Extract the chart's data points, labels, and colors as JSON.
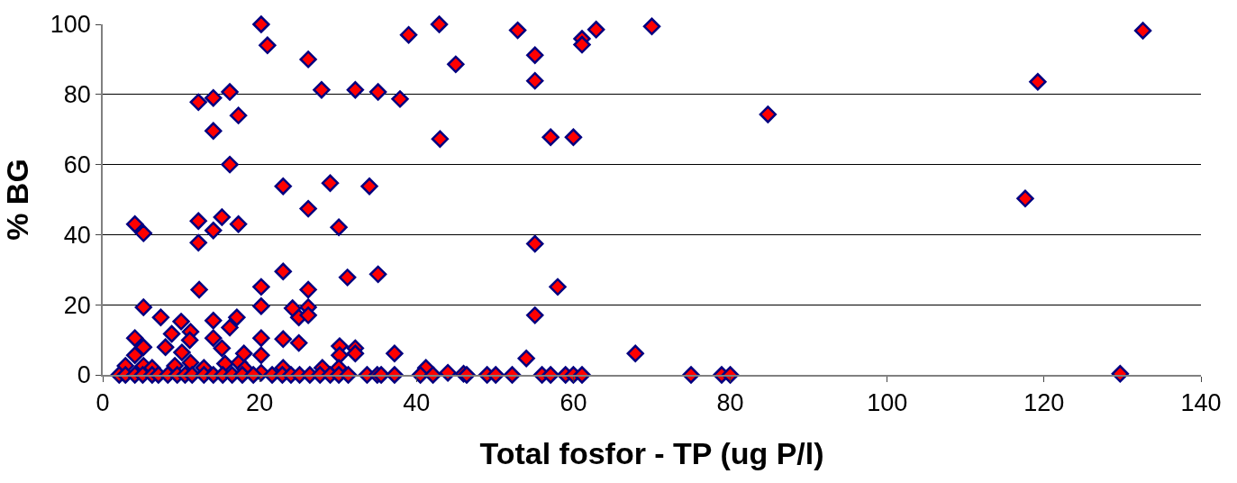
{
  "chart_data": {
    "type": "scatter",
    "xlabel": "Total fosfor - TP (ug P/l)",
    "ylabel": "% BG",
    "xlim": [
      0,
      140
    ],
    "xticks": [
      0,
      20,
      40,
      60,
      80,
      100,
      120,
      140
    ],
    "ylim": [
      0,
      100
    ],
    "yticks": [
      0,
      20,
      40,
      60,
      80,
      100
    ],
    "grid": "y",
    "marker": "diamond",
    "series": [
      {
        "color": "#ff0000",
        "x": [
          20.2,
          21,
          42.9,
          26.2,
          39,
          45,
          12.2,
          14.1,
          16.2,
          17.3,
          14.1,
          27.9,
          32.2,
          35.1,
          37.9,
          43,
          16.2,
          23,
          29,
          34,
          26.2,
          30.1,
          4.1,
          5.2,
          12.2,
          15.2,
          14.1,
          17.3,
          12.2,
          23,
          31.2,
          35.1,
          52.9,
          55.1,
          55.1,
          61.1,
          61.1,
          62.9,
          70,
          57.1,
          60,
          55.1,
          58,
          55.1,
          54,
          67.9,
          84.8,
          117.6,
          119.2,
          129.7,
          132.6,
          12.3,
          20.2,
          20.2,
          26.2,
          26.2,
          25,
          24.2,
          26.2,
          5.2,
          7.4,
          10,
          8.8,
          11.2,
          11.1,
          14.1,
          17.1,
          16.2,
          14.1,
          15.2,
          20.2,
          20.2,
          23,
          25,
          30.2,
          30.2,
          32.2,
          32.2,
          37.2,
          4.1,
          5.2,
          4.1,
          2.9,
          5.2,
          6.3,
          8,
          9.2,
          10.1,
          11.2,
          12.9,
          15.6,
          17.4,
          18,
          18.1,
          20.2,
          23,
          28,
          30.1,
          41.2,
          44,
          46,
          2.1,
          2.9,
          4.1,
          5.1,
          6.3,
          7.1,
          8.3,
          9.5,
          10.5,
          11.4,
          12.9,
          14.1,
          15.3,
          16.5,
          17.8,
          19.2,
          21.6,
          22.9,
          24,
          25.1,
          26.4,
          27.7,
          29,
          30.1,
          31.3,
          33.7,
          35,
          35.5,
          37.2,
          40.5,
          42.1,
          46.4,
          49,
          50.1,
          52.2,
          56,
          57.1,
          59,
          60,
          61.1,
          75,
          78.9,
          80
        ],
        "values": [
          100,
          94,
          100,
          90,
          97,
          88.6,
          77.8,
          79,
          80.7,
          74,
          69.6,
          81.3,
          81.3,
          80.7,
          78.7,
          67.3,
          60,
          53.8,
          54.7,
          53.8,
          47.4,
          42.1,
          43,
          40.4,
          43.9,
          45,
          41.2,
          43,
          37.7,
          29.5,
          27.8,
          28.7,
          98.3,
          91.2,
          83.9,
          95.9,
          94.2,
          98.5,
          99.4,
          67.8,
          67.8,
          37.4,
          25.1,
          17,
          4.7,
          6.1,
          74.3,
          50.3,
          83.6,
          0.3,
          98.2,
          24.3,
          25.1,
          19.6,
          24.3,
          19.3,
          16.4,
          19,
          17,
          19.3,
          16.4,
          15.2,
          11.7,
          12.3,
          9.9,
          15.5,
          16.4,
          13.5,
          10.5,
          7.6,
          10.5,
          5.6,
          10.2,
          9.1,
          8.2,
          5.6,
          7.6,
          6.1,
          6.1,
          10.5,
          7.9,
          5.6,
          2.6,
          2.6,
          2,
          7.9,
          2.6,
          6.4,
          3.5,
          2,
          3.2,
          3.5,
          6.1,
          1.8,
          0.6,
          2,
          2,
          2,
          2,
          0.6,
          0.3,
          0,
          0,
          0,
          0,
          0,
          0,
          0,
          0,
          0,
          0,
          0,
          0,
          0,
          0,
          0,
          0,
          0,
          0,
          0,
          0,
          0,
          0,
          0,
          0,
          0,
          0,
          0,
          0,
          0,
          0,
          0,
          0,
          0,
          0,
          0,
          0,
          0,
          0,
          0,
          0,
          0,
          0,
          0
        ]
      }
    ]
  }
}
